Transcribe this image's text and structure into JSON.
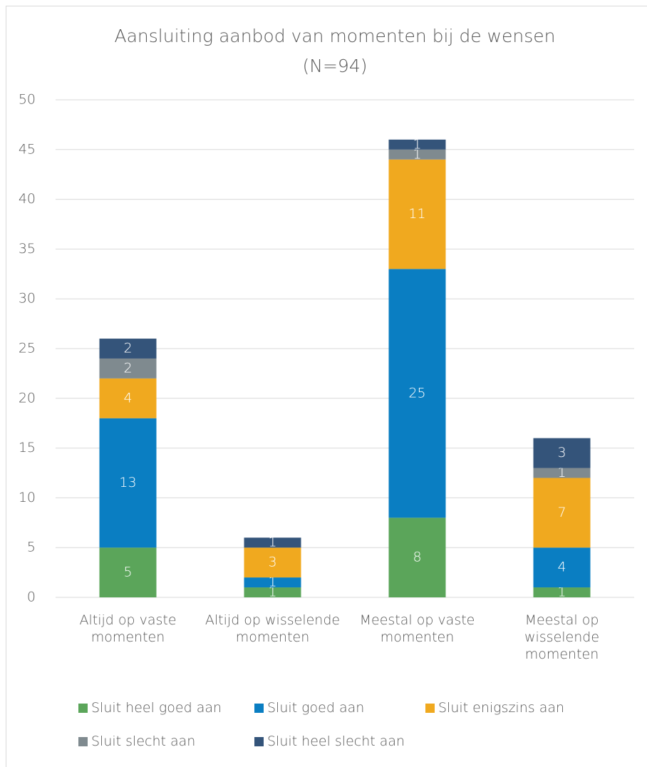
{
  "chart_data": {
    "type": "stacked_bar",
    "title": "Aansluiting aanbod van momenten bij de wensen",
    "subtitle": "(N=94)",
    "categories": [
      "Altijd op vaste momenten",
      "Altijd op wisselende momenten",
      "Meestal op vaste momenten",
      "Meestal op wisselende momenten"
    ],
    "series": [
      {
        "name": "Sluit heel goed aan",
        "color": "#5ba55a",
        "values": [
          5,
          1,
          8,
          1
        ]
      },
      {
        "name": "Sluit goed aan",
        "color": "#0a7ec2",
        "values": [
          13,
          1,
          25,
          4
        ]
      },
      {
        "name": "Sluit enigszins aan",
        "color": "#f0a91f",
        "values": [
          4,
          3,
          11,
          7
        ]
      },
      {
        "name": "Sluit slecht aan",
        "color": "#7f8a8f",
        "values": [
          2,
          null,
          1,
          1
        ]
      },
      {
        "name": "Sluit heel slecht aan",
        "color": "#34547a",
        "values": [
          2,
          1,
          1,
          3
        ]
      }
    ],
    "ylim": [
      0,
      50
    ],
    "yticks": [
      0,
      5,
      10,
      15,
      20,
      25,
      30,
      35,
      40,
      45,
      50
    ],
    "grid": true,
    "legend": "bottom"
  }
}
